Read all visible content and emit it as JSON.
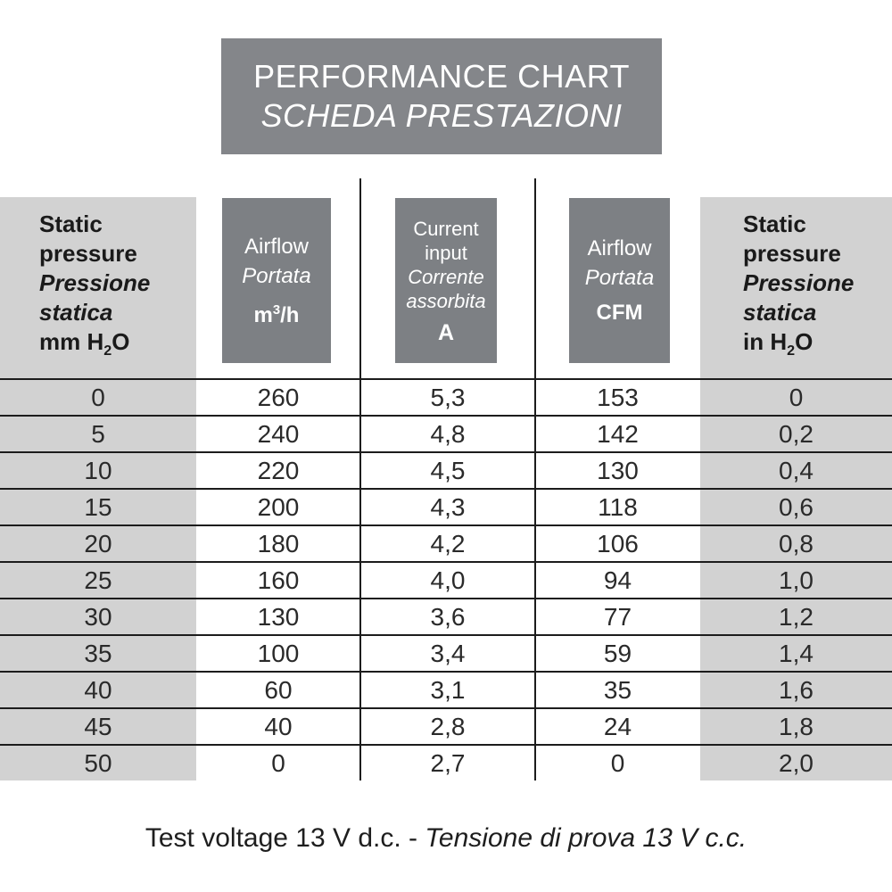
{
  "title": {
    "en": "PERFORMANCE CHART",
    "it": "SCHEDA PRESTAZIONI"
  },
  "header": {
    "col1": {
      "l1": "Static",
      "l2": "pressure",
      "l3": "Pressione",
      "l4": "statica",
      "unit_pre": "mm H",
      "unit_sub": "2",
      "unit_post": "O"
    },
    "col2": {
      "l1": "Airflow",
      "l2": "Portata",
      "unit_pre": "m",
      "unit_sup": "3",
      "unit_post": "/h"
    },
    "col3": {
      "l1": "Current",
      "l2": "input",
      "l3": "Corrente",
      "l4": "assorbita",
      "unit": "A"
    },
    "col4": {
      "l1": "Airflow",
      "l2": "Portata",
      "unit": "CFM"
    },
    "col5": {
      "l1": "Static",
      "l2": "pressure",
      "l3": "Pressione",
      "l4": "statica",
      "unit_pre": "in H",
      "unit_sub": "2",
      "unit_post": "O"
    }
  },
  "chart_data": {
    "type": "table",
    "columns": [
      "Static pressure mm H2O",
      "Airflow m3/h",
      "Current input A",
      "Airflow CFM",
      "Static pressure in H2O"
    ],
    "rows": [
      [
        "0",
        "260",
        "5,3",
        "153",
        "0"
      ],
      [
        "5",
        "240",
        "4,8",
        "142",
        "0,2"
      ],
      [
        "10",
        "220",
        "4,5",
        "130",
        "0,4"
      ],
      [
        "15",
        "200",
        "4,3",
        "118",
        "0,6"
      ],
      [
        "20",
        "180",
        "4,2",
        "106",
        "0,8"
      ],
      [
        "25",
        "160",
        "4,0",
        "94",
        "1,0"
      ],
      [
        "30",
        "130",
        "3,6",
        "77",
        "1,2"
      ],
      [
        "35",
        "100",
        "3,4",
        "59",
        "1,4"
      ],
      [
        "40",
        "60",
        "3,1",
        "35",
        "1,6"
      ],
      [
        "45",
        "40",
        "2,8",
        "24",
        "1,8"
      ],
      [
        "50",
        "0",
        "2,7",
        "0",
        "2,0"
      ]
    ]
  },
  "footer": {
    "en": "Test voltage 13 V d.c. - ",
    "it": "Tensione di prova 13 V c.c."
  },
  "colors": {
    "title_bg": "#84868a",
    "header_box_bg": "#7d8084",
    "light_column_bg": "#d2d2d2",
    "line": "#1c1c1c",
    "text": "#1e1e1e",
    "header_text_on_dark": "#ffffff"
  }
}
